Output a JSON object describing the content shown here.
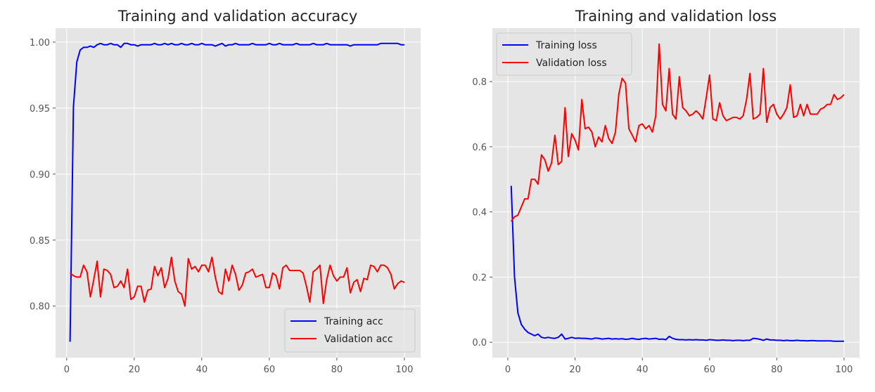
{
  "chart_data": [
    {
      "type": "line",
      "title": "Training and validation accuracy",
      "xlabel": "",
      "ylabel": "",
      "xlim": [
        -3.3,
        104.8
      ],
      "ylim": [
        0.761,
        1.0106
      ],
      "xticks": [
        "0",
        "20",
        "40",
        "60",
        "80",
        "100"
      ],
      "yticks": [
        "0.80",
        "0.85",
        "0.90",
        "0.95",
        "1.00"
      ],
      "grid": true,
      "legend_position": "lower-right",
      "series": [
        {
          "name": "Training acc",
          "color": "#0000ff",
          "values": [
            0.773,
            0.951,
            0.985,
            0.994,
            0.996,
            0.996,
            0.997,
            0.996,
            0.998,
            0.999,
            0.998,
            0.998,
            0.999,
            0.998,
            0.998,
            0.996,
            0.999,
            0.999,
            0.998,
            0.998,
            0.997,
            0.998,
            0.998,
            0.998,
            0.998,
            0.999,
            0.998,
            0.998,
            0.999,
            0.998,
            0.999,
            0.998,
            0.998,
            0.999,
            0.998,
            0.998,
            0.999,
            0.998,
            0.998,
            0.999,
            0.998,
            0.998,
            0.998,
            0.997,
            0.998,
            0.999,
            0.997,
            0.998,
            0.998,
            0.999,
            0.998,
            0.998,
            0.998,
            0.998,
            0.999,
            0.998,
            0.998,
            0.998,
            0.998,
            0.999,
            0.998,
            0.998,
            0.999,
            0.998,
            0.998,
            0.998,
            0.998,
            0.999,
            0.998,
            0.998,
            0.998,
            0.998,
            0.999,
            0.998,
            0.998,
            0.998,
            0.999,
            0.998,
            0.998,
            0.998,
            0.998,
            0.998,
            0.998,
            0.997,
            0.998,
            0.998,
            0.998,
            0.998,
            0.998,
            0.998,
            0.998,
            0.998,
            0.999,
            0.999,
            0.999,
            0.999,
            0.999,
            0.999,
            0.998,
            0.998
          ]
        },
        {
          "name": "Validation acc",
          "color": "#ff0000",
          "values": [
            0.825,
            0.823,
            0.822,
            0.822,
            0.831,
            0.826,
            0.807,
            0.82,
            0.834,
            0.807,
            0.828,
            0.827,
            0.824,
            0.814,
            0.815,
            0.819,
            0.814,
            0.828,
            0.805,
            0.807,
            0.815,
            0.815,
            0.803,
            0.812,
            0.813,
            0.83,
            0.823,
            0.829,
            0.814,
            0.821,
            0.837,
            0.819,
            0.811,
            0.809,
            0.8,
            0.836,
            0.828,
            0.83,
            0.826,
            0.831,
            0.831,
            0.826,
            0.837,
            0.822,
            0.811,
            0.809,
            0.828,
            0.819,
            0.831,
            0.824,
            0.812,
            0.816,
            0.825,
            0.826,
            0.828,
            0.822,
            0.823,
            0.824,
            0.814,
            0.814,
            0.825,
            0.823,
            0.813,
            0.829,
            0.831,
            0.827,
            0.827,
            0.827,
            0.827,
            0.825,
            0.815,
            0.803,
            0.826,
            0.828,
            0.831,
            0.802,
            0.82,
            0.831,
            0.823,
            0.819,
            0.822,
            0.822,
            0.829,
            0.81,
            0.818,
            0.82,
            0.811,
            0.821,
            0.82,
            0.831,
            0.83,
            0.826,
            0.831,
            0.831,
            0.829,
            0.824,
            0.813,
            0.817,
            0.819,
            0.818
          ]
        }
      ]
    },
    {
      "type": "line",
      "title": "Training and validation loss",
      "xlabel": "",
      "ylabel": "",
      "xlim": [
        -4.6,
        104.6
      ],
      "ylim": [
        -0.047,
        0.964
      ],
      "xticks": [
        "0",
        "20",
        "40",
        "60",
        "80",
        "100"
      ],
      "yticks": [
        "0.0",
        "0.2",
        "0.4",
        "0.6",
        "0.8"
      ],
      "grid": true,
      "legend_position": "upper-left",
      "series": [
        {
          "name": "Training loss",
          "color": "#0000ff",
          "values": [
            0.48,
            0.2,
            0.09,
            0.055,
            0.04,
            0.03,
            0.025,
            0.02,
            0.025,
            0.015,
            0.013,
            0.015,
            0.013,
            0.012,
            0.015,
            0.025,
            0.01,
            0.012,
            0.015,
            0.012,
            0.013,
            0.012,
            0.012,
            0.011,
            0.01,
            0.013,
            0.012,
            0.01,
            0.011,
            0.012,
            0.01,
            0.011,
            0.01,
            0.011,
            0.009,
            0.01,
            0.012,
            0.01,
            0.009,
            0.011,
            0.012,
            0.01,
            0.011,
            0.012,
            0.009,
            0.01,
            0.008,
            0.018,
            0.012,
            0.009,
            0.008,
            0.008,
            0.007,
            0.008,
            0.007,
            0.008,
            0.007,
            0.007,
            0.006,
            0.008,
            0.007,
            0.006,
            0.006,
            0.007,
            0.006,
            0.006,
            0.005,
            0.006,
            0.006,
            0.005,
            0.006,
            0.006,
            0.012,
            0.011,
            0.009,
            0.006,
            0.01,
            0.007,
            0.007,
            0.006,
            0.006,
            0.005,
            0.006,
            0.005,
            0.005,
            0.006,
            0.005,
            0.005,
            0.004,
            0.005,
            0.005,
            0.004,
            0.004,
            0.004,
            0.004,
            0.004,
            0.003,
            0.003,
            0.003,
            0.003
          ]
        },
        {
          "name": "Validation loss",
          "color": "#ff0000",
          "values": [
            0.371,
            0.385,
            0.39,
            0.415,
            0.44,
            0.44,
            0.5,
            0.5,
            0.485,
            0.575,
            0.56,
            0.525,
            0.55,
            0.635,
            0.545,
            0.555,
            0.72,
            0.57,
            0.64,
            0.62,
            0.59,
            0.745,
            0.655,
            0.66,
            0.645,
            0.6,
            0.63,
            0.615,
            0.665,
            0.625,
            0.61,
            0.645,
            0.76,
            0.81,
            0.795,
            0.655,
            0.635,
            0.615,
            0.665,
            0.67,
            0.655,
            0.665,
            0.645,
            0.695,
            0.915,
            0.73,
            0.71,
            0.84,
            0.7,
            0.685,
            0.815,
            0.72,
            0.71,
            0.695,
            0.7,
            0.71,
            0.7,
            0.685,
            0.75,
            0.82,
            0.685,
            0.68,
            0.735,
            0.695,
            0.68,
            0.685,
            0.69,
            0.69,
            0.685,
            0.695,
            0.745,
            0.825,
            0.685,
            0.69,
            0.7,
            0.84,
            0.675,
            0.72,
            0.73,
            0.7,
            0.685,
            0.7,
            0.72,
            0.79,
            0.69,
            0.695,
            0.73,
            0.695,
            0.73,
            0.7,
            0.7,
            0.7,
            0.715,
            0.72,
            0.73,
            0.73,
            0.76,
            0.745,
            0.75,
            0.76
          ]
        }
      ]
    }
  ]
}
